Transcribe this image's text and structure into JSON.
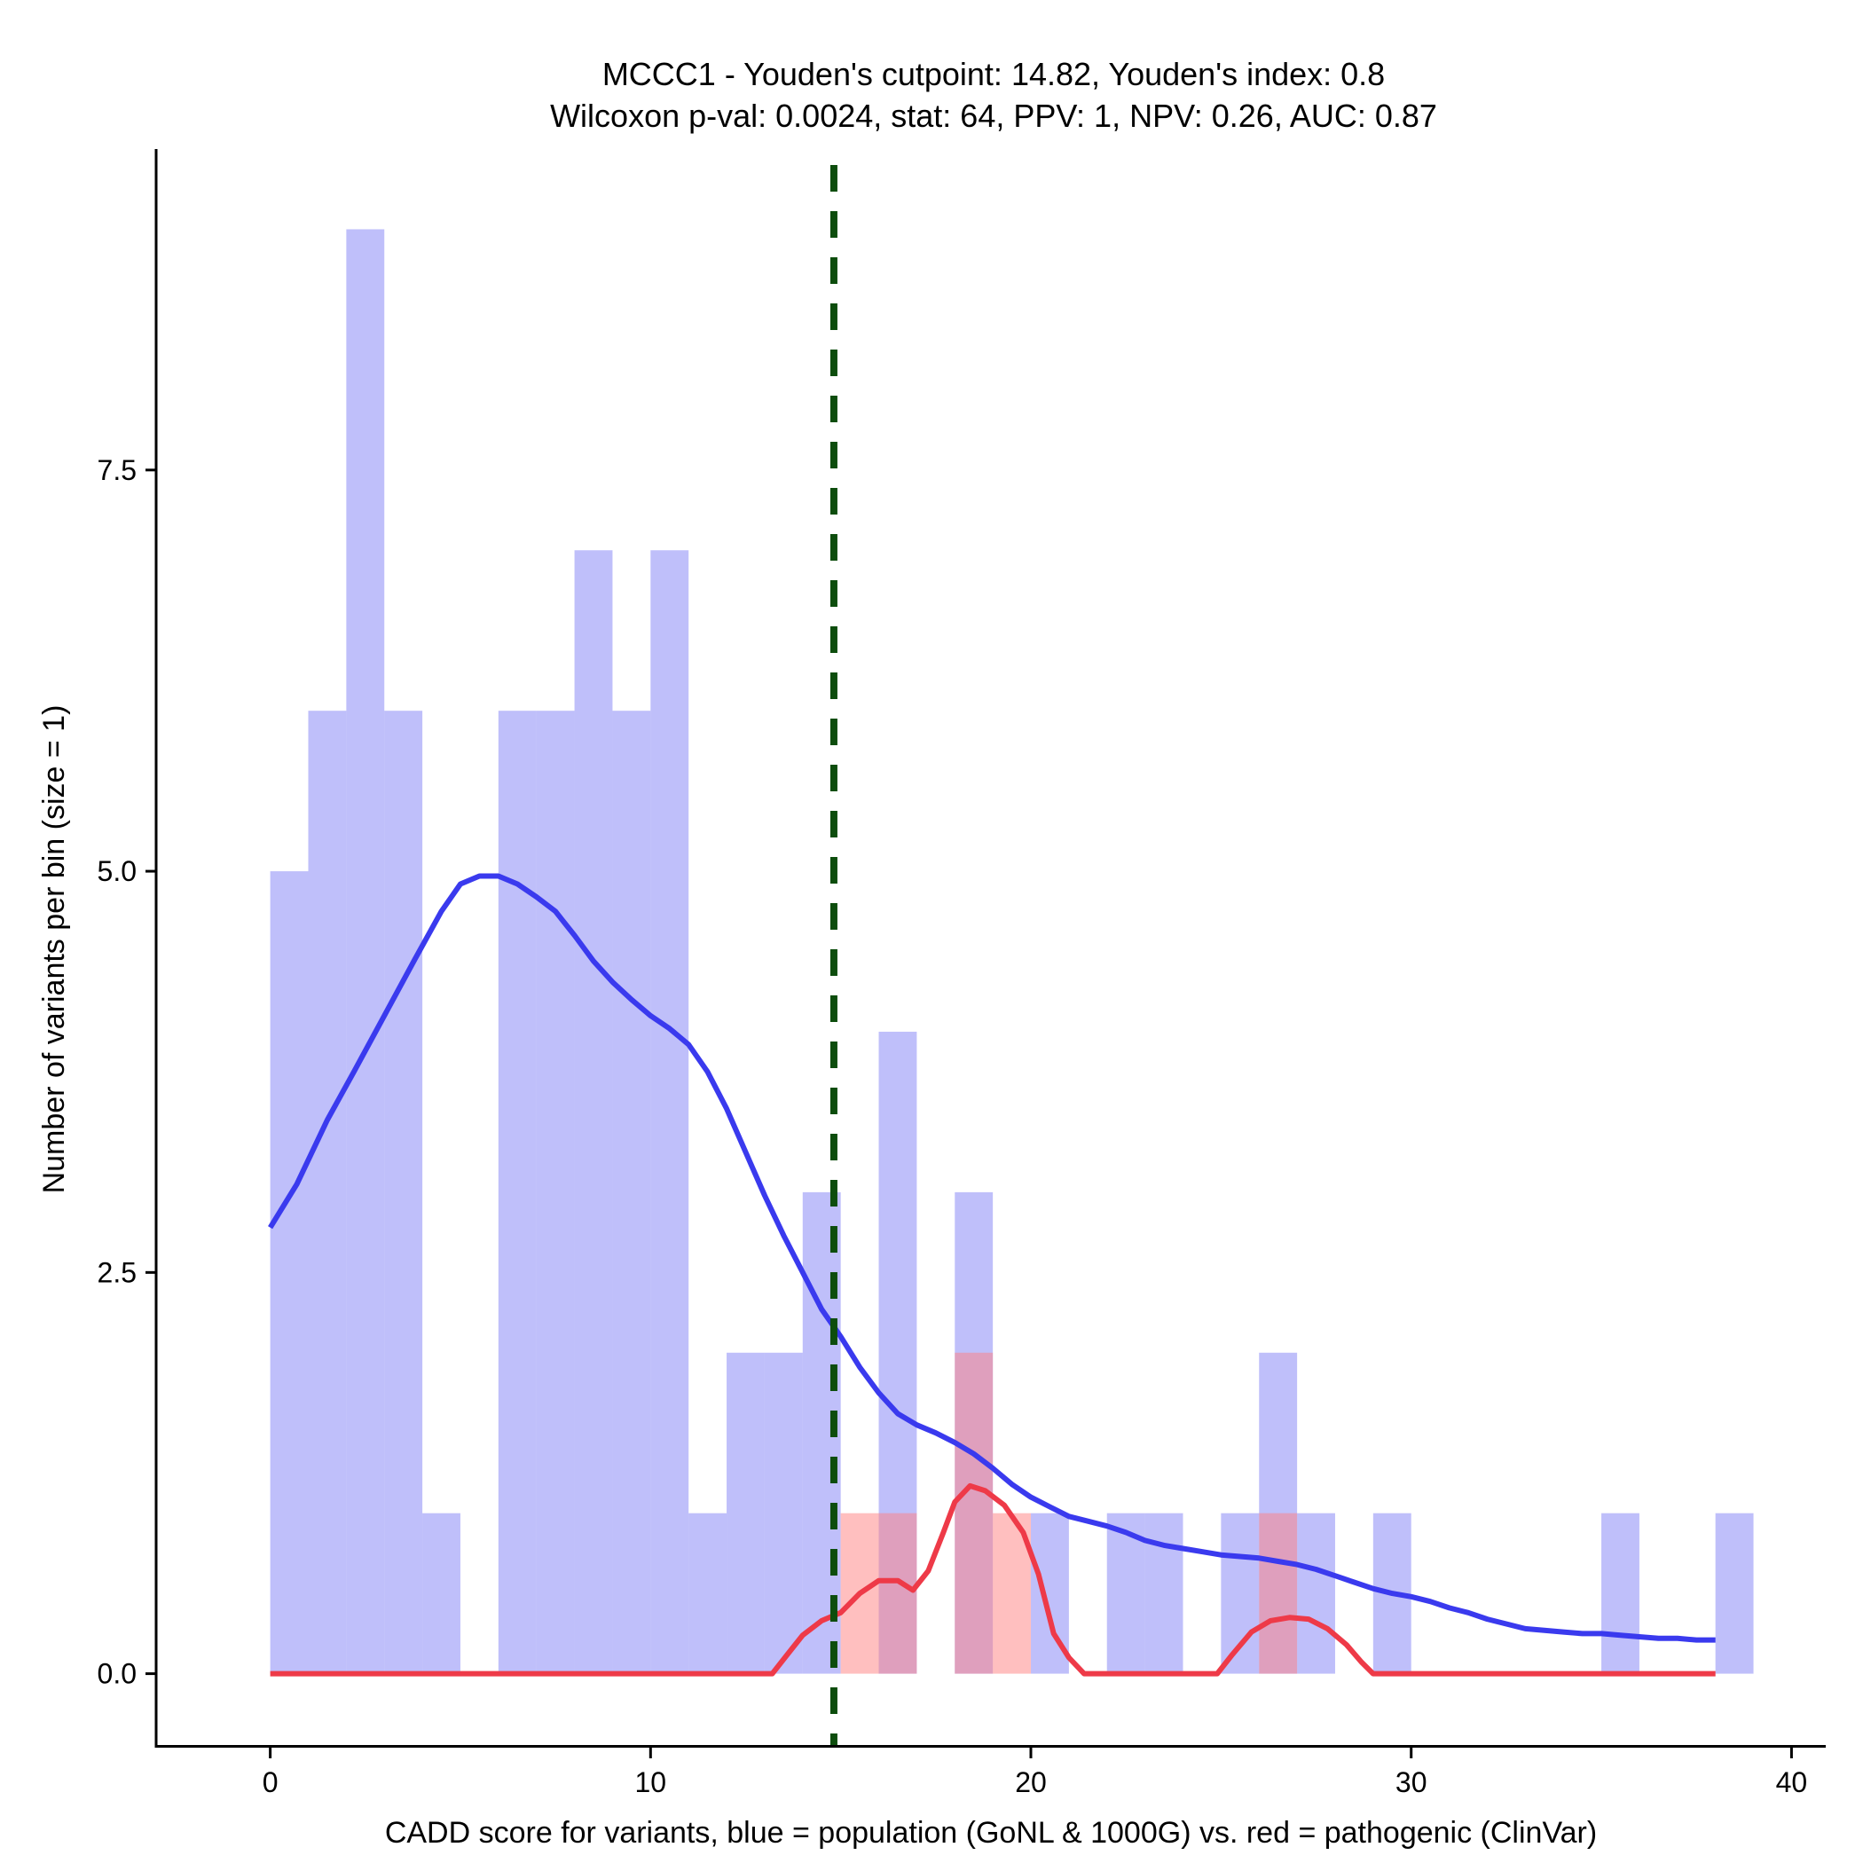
{
  "chart_data": {
    "type": "bar",
    "title": "MCCC1 - Youden's cutpoint: 14.82, Youden's index: 0.8",
    "subtitle": "Wilcoxon p-val: 0.0024, stat: 64, PPV: 1, NPV: 0.26, AUC: 0.87",
    "xlabel": "CADD score for variants, blue = population (GoNL & 1000G) vs. red = pathogenic (ClinVar)",
    "ylabel": "Number of variants per bin (size = 1)",
    "xlim": [
      -3,
      40.9
    ],
    "ylim": [
      -0.45,
      9.5
    ],
    "x_ticks": [
      0,
      10,
      20,
      30,
      40
    ],
    "x_tick_labels": [
      "0",
      "10",
      "20",
      "30",
      "40"
    ],
    "y_ticks": [
      0,
      2.5,
      5,
      7.5
    ],
    "y_tick_labels": [
      "0.0",
      "2.5",
      "5.0",
      "7.5"
    ],
    "bin_width": 1,
    "series": [
      {
        "name": "population (GoNL & 1000G)",
        "color": "#7f7ff5",
        "opacity": 0.5,
        "bins": [
          {
            "x0": 0,
            "count": 5
          },
          {
            "x0": 1,
            "count": 6
          },
          {
            "x0": 2,
            "count": 9
          },
          {
            "x0": 3,
            "count": 6
          },
          {
            "x0": 4,
            "count": 1
          },
          {
            "x0": 6,
            "count": 6
          },
          {
            "x0": 7,
            "count": 6
          },
          {
            "x0": 8,
            "count": 7
          },
          {
            "x0": 9,
            "count": 6
          },
          {
            "x0": 10,
            "count": 7
          },
          {
            "x0": 11,
            "count": 1
          },
          {
            "x0": 12,
            "count": 2
          },
          {
            "x0": 13,
            "count": 2
          },
          {
            "x0": 14,
            "count": 3
          },
          {
            "x0": 16,
            "count": 4
          },
          {
            "x0": 18,
            "count": 3
          },
          {
            "x0": 20,
            "count": 1
          },
          {
            "x0": 22,
            "count": 1
          },
          {
            "x0": 23,
            "count": 1
          },
          {
            "x0": 25,
            "count": 1
          },
          {
            "x0": 26,
            "count": 2
          },
          {
            "x0": 27,
            "count": 1
          },
          {
            "x0": 29,
            "count": 1
          },
          {
            "x0": 35,
            "count": 1
          },
          {
            "x0": 38,
            "count": 1
          }
        ]
      },
      {
        "name": "pathogenic (ClinVar)",
        "color": "#ff7f7f",
        "opacity": 0.5,
        "bins": [
          {
            "x0": 15,
            "count": 1
          },
          {
            "x0": 16,
            "count": 1
          },
          {
            "x0": 18,
            "count": 2
          },
          {
            "x0": 19,
            "count": 1
          },
          {
            "x0": 26,
            "count": 1
          }
        ]
      }
    ],
    "density_curves": [
      {
        "name": "population density",
        "color": "#3a3aee",
        "points": [
          [
            0,
            2.78
          ],
          [
            0.7,
            3.05
          ],
          [
            1.5,
            3.45
          ],
          [
            2.2,
            3.75
          ],
          [
            3.0,
            4.1
          ],
          [
            3.8,
            4.45
          ],
          [
            4.5,
            4.75
          ],
          [
            5.0,
            4.92
          ],
          [
            5.5,
            4.97
          ],
          [
            6.0,
            4.97
          ],
          [
            6.5,
            4.92
          ],
          [
            7.0,
            4.84
          ],
          [
            7.5,
            4.75
          ],
          [
            8.0,
            4.6
          ],
          [
            8.5,
            4.44
          ],
          [
            9.0,
            4.31
          ],
          [
            9.5,
            4.2
          ],
          [
            10.0,
            4.1
          ],
          [
            10.5,
            4.02
          ],
          [
            11.0,
            3.92
          ],
          [
            11.5,
            3.75
          ],
          [
            12.0,
            3.52
          ],
          [
            12.5,
            3.25
          ],
          [
            13.0,
            2.98
          ],
          [
            13.5,
            2.73
          ],
          [
            14.0,
            2.5
          ],
          [
            14.5,
            2.27
          ],
          [
            15.0,
            2.1
          ],
          [
            15.5,
            1.91
          ],
          [
            16.0,
            1.75
          ],
          [
            16.5,
            1.62
          ],
          [
            17.0,
            1.55
          ],
          [
            17.5,
            1.5
          ],
          [
            18.0,
            1.44
          ],
          [
            18.5,
            1.37
          ],
          [
            19.0,
            1.28
          ],
          [
            19.5,
            1.18
          ],
          [
            20.0,
            1.1
          ],
          [
            20.5,
            1.04
          ],
          [
            21.0,
            0.98
          ],
          [
            21.5,
            0.95
          ],
          [
            22.0,
            0.92
          ],
          [
            22.5,
            0.88
          ],
          [
            23.0,
            0.83
          ],
          [
            23.5,
            0.8
          ],
          [
            24.0,
            0.78
          ],
          [
            24.5,
            0.76
          ],
          [
            25.0,
            0.74
          ],
          [
            25.5,
            0.73
          ],
          [
            26.0,
            0.72
          ],
          [
            26.5,
            0.7
          ],
          [
            27.0,
            0.68
          ],
          [
            27.5,
            0.65
          ],
          [
            28.0,
            0.61
          ],
          [
            28.5,
            0.57
          ],
          [
            29.0,
            0.53
          ],
          [
            29.5,
            0.5
          ],
          [
            30.0,
            0.48
          ],
          [
            30.5,
            0.45
          ],
          [
            31.0,
            0.41
          ],
          [
            31.5,
            0.38
          ],
          [
            32.0,
            0.34
          ],
          [
            32.5,
            0.31
          ],
          [
            33.0,
            0.28
          ],
          [
            33.5,
            0.27
          ],
          [
            34.0,
            0.26
          ],
          [
            34.5,
            0.25
          ],
          [
            35.0,
            0.25
          ],
          [
            35.5,
            0.24
          ],
          [
            36.0,
            0.23
          ],
          [
            36.5,
            0.22
          ],
          [
            37.0,
            0.22
          ],
          [
            37.5,
            0.21
          ],
          [
            38.0,
            0.21
          ]
        ]
      },
      {
        "name": "pathogenic density",
        "color": "#ee3a48",
        "points": [
          [
            0,
            0
          ],
          [
            13.2,
            0
          ],
          [
            13.6,
            0.12
          ],
          [
            14.0,
            0.24
          ],
          [
            14.5,
            0.33
          ],
          [
            15.0,
            0.38
          ],
          [
            15.5,
            0.5
          ],
          [
            16.0,
            0.58
          ],
          [
            16.5,
            0.58
          ],
          [
            16.9,
            0.52
          ],
          [
            17.3,
            0.64
          ],
          [
            17.7,
            0.88
          ],
          [
            18.0,
            1.07
          ],
          [
            18.4,
            1.17
          ],
          [
            18.8,
            1.14
          ],
          [
            19.3,
            1.05
          ],
          [
            19.8,
            0.88
          ],
          [
            20.2,
            0.62
          ],
          [
            20.6,
            0.25
          ],
          [
            21.0,
            0.1
          ],
          [
            21.4,
            0.0
          ],
          [
            24.9,
            0.0
          ],
          [
            25.3,
            0.12
          ],
          [
            25.8,
            0.26
          ],
          [
            26.3,
            0.33
          ],
          [
            26.8,
            0.35
          ],
          [
            27.3,
            0.34
          ],
          [
            27.8,
            0.28
          ],
          [
            28.3,
            0.18
          ],
          [
            28.7,
            0.07
          ],
          [
            29.0,
            0.0
          ],
          [
            38.0,
            0.0
          ]
        ]
      }
    ],
    "cutpoint": {
      "label": "Youden's cutpoint",
      "x": 14.82,
      "color": "#0d4d0d",
      "style": "dashed"
    }
  }
}
